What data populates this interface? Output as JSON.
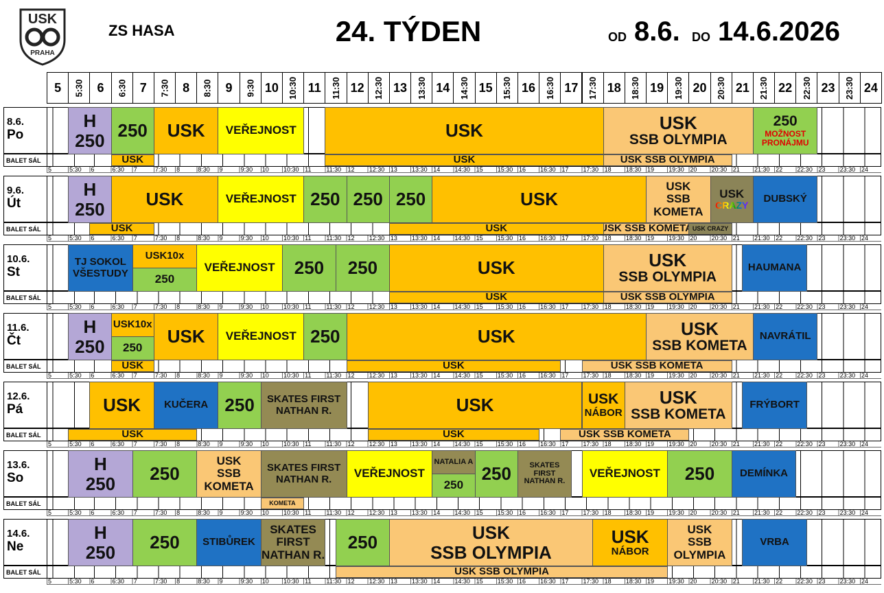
{
  "header": {
    "logo_text": "USK",
    "logo_sub": "PRAHA",
    "venue": "ZS HASA",
    "week": "24. TÝDEN",
    "from_label": "OD",
    "from_date": "8.6.",
    "to_label": "DO",
    "to_date": "14.6.2026"
  },
  "time_labels": [
    "5",
    "5:30",
    "6",
    "6:30",
    "7",
    "7:30",
    "8",
    "8:30",
    "9",
    "9:30",
    "10",
    "10:30",
    "11",
    "11:30",
    "12",
    "12:30",
    "13",
    "13:30",
    "14",
    "14:30",
    "15",
    "15:30",
    "16",
    "16:30",
    "17",
    "17:30",
    "18",
    "18:30",
    "19",
    "19:30",
    "20",
    "20:30",
    "21",
    "21:30",
    "22",
    "22:30",
    "23",
    "23:30",
    "24"
  ],
  "balet_label": "BALET SÁL",
  "days": [
    {
      "date": "8.6.",
      "day": "Po",
      "events": [
        {
          "lines": [
            "H",
            "250"
          ]
        },
        {
          "lines": [
            "250"
          ]
        },
        {
          "lines": [
            "USK"
          ]
        },
        {
          "lines": [
            "VEŘEJNOST"
          ]
        },
        {
          "lines": [
            "USK"
          ]
        },
        {
          "lines": [
            "USK",
            "SSB OLYMPIA"
          ]
        },
        {
          "lines": [
            "250",
            "MOŽNOST",
            "PRONÁJMU"
          ]
        }
      ],
      "balet": [
        {
          "lines": [
            "USK"
          ]
        },
        {
          "lines": [
            "USK"
          ]
        },
        {
          "lines": [
            "USK SSB OLYMPIA"
          ]
        }
      ]
    },
    {
      "date": "9.6.",
      "day": "Út",
      "events": [
        {
          "lines": [
            "H",
            "250"
          ]
        },
        {
          "lines": [
            "USK"
          ]
        },
        {
          "lines": [
            "VEŘEJNOST"
          ]
        },
        {
          "lines": [
            "250"
          ]
        },
        {
          "lines": [
            "250"
          ]
        },
        {
          "lines": [
            "250"
          ]
        },
        {
          "lines": [
            "USK"
          ]
        },
        {
          "lines": [
            "USK",
            "SSB",
            "KOMETA"
          ]
        },
        {
          "lines": [
            "USK",
            "CRAZY"
          ]
        },
        {
          "lines": [
            "DUBSKÝ"
          ]
        }
      ],
      "balet": [
        {
          "lines": [
            "USK"
          ]
        },
        {
          "lines": [
            "USK"
          ]
        },
        {
          "lines": [
            "USK SSB KOMETA"
          ]
        },
        {
          "lines": [
            "USK CRAZY"
          ]
        }
      ]
    },
    {
      "date": "10.6.",
      "day": "St",
      "events": [
        {
          "lines": [
            "TJ SOKOL",
            "VŠESTUDY"
          ]
        },
        {
          "lines": [
            "USK10x"
          ]
        },
        {
          "lines": [
            "250"
          ]
        },
        {
          "lines": [
            "VEŘEJNOST"
          ]
        },
        {
          "lines": [
            "250"
          ]
        },
        {
          "lines": [
            "250"
          ]
        },
        {
          "lines": [
            "USK"
          ]
        },
        {
          "lines": [
            "USK",
            "SSB OLYMPIA"
          ]
        },
        {
          "lines": [
            "HAUMANA"
          ]
        }
      ],
      "balet": [
        {
          "lines": [
            "USK"
          ]
        },
        {
          "lines": [
            "USK SSB OLYMPIA"
          ]
        }
      ]
    },
    {
      "date": "11.6.",
      "day": "Čt",
      "events": [
        {
          "lines": [
            "H",
            "250"
          ]
        },
        {
          "lines": [
            "USK10x"
          ]
        },
        {
          "lines": [
            "250"
          ]
        },
        {
          "lines": [
            "USK"
          ]
        },
        {
          "lines": [
            "VEŘEJNOST"
          ]
        },
        {
          "lines": [
            "250"
          ]
        },
        {
          "lines": [
            "USK"
          ]
        },
        {
          "lines": [
            "USK",
            "SSB KOMETA"
          ]
        },
        {
          "lines": [
            "NAVRÁTIL"
          ]
        }
      ],
      "balet": [
        {
          "lines": [
            "USK"
          ]
        },
        {
          "lines": [
            "USK"
          ]
        },
        {
          "lines": [
            "USK SSB KOMETA"
          ]
        }
      ]
    },
    {
      "date": "12.6.",
      "day": "Pá",
      "events": [
        {
          "lines": [
            "USK"
          ]
        },
        {
          "lines": [
            "KUČERA"
          ]
        },
        {
          "lines": [
            "250"
          ]
        },
        {
          "lines": [
            "SKATES FIRST",
            "NATHAN R."
          ]
        },
        {
          "lines": [
            "USK"
          ]
        },
        {
          "lines": [
            "USK",
            "NÁBOR"
          ]
        },
        {
          "lines": [
            "USK",
            "SSB KOMETA"
          ]
        },
        {
          "lines": [
            "FRÝBORT"
          ]
        }
      ],
      "balet": [
        {
          "lines": [
            "USK"
          ]
        },
        {
          "lines": [
            "USK"
          ]
        },
        {
          "lines": [
            "USK SSB KOMETA"
          ]
        }
      ]
    },
    {
      "date": "13.6.",
      "day": "So",
      "events": [
        {
          "lines": [
            "H",
            "250"
          ]
        },
        {
          "lines": [
            "250"
          ]
        },
        {
          "lines": [
            "USK",
            "SSB",
            "KOMETA"
          ]
        },
        {
          "lines": [
            "SKATES FIRST",
            "NATHAN R."
          ]
        },
        {
          "lines": [
            "VEŘEJNOST"
          ]
        },
        {
          "lines": [
            "NATALIA A"
          ]
        },
        {
          "lines": [
            "250"
          ]
        },
        {
          "lines": [
            "250"
          ]
        },
        {
          "lines": [
            "SKATES",
            "FIRST",
            "NATHAN R."
          ]
        },
        {
          "lines": [
            "VEŘEJNOST"
          ]
        },
        {
          "lines": [
            "250"
          ]
        },
        {
          "lines": [
            "DEMÍNKA"
          ]
        }
      ],
      "balet": [
        {
          "lines": [
            "KOMETA"
          ]
        }
      ]
    },
    {
      "date": "14.6.",
      "day": "Ne",
      "events": [
        {
          "lines": [
            "H",
            "250"
          ]
        },
        {
          "lines": [
            "250"
          ]
        },
        {
          "lines": [
            "STIBŮREK"
          ]
        },
        {
          "lines": [
            "SKATES",
            "FIRST",
            "NATHAN R."
          ]
        },
        {
          "lines": [
            "250"
          ]
        },
        {
          "lines": [
            "USK",
            "SSB OLYMPIA"
          ]
        },
        {
          "lines": [
            "USK",
            "NÁBOR"
          ]
        },
        {
          "lines": [
            "USK",
            "SSB",
            "OLYMPIA"
          ]
        },
        {
          "lines": [
            "VRBA"
          ]
        }
      ],
      "balet": [
        {
          "lines": [
            "USK SSB OLYMPIA"
          ]
        }
      ]
    }
  ]
}
